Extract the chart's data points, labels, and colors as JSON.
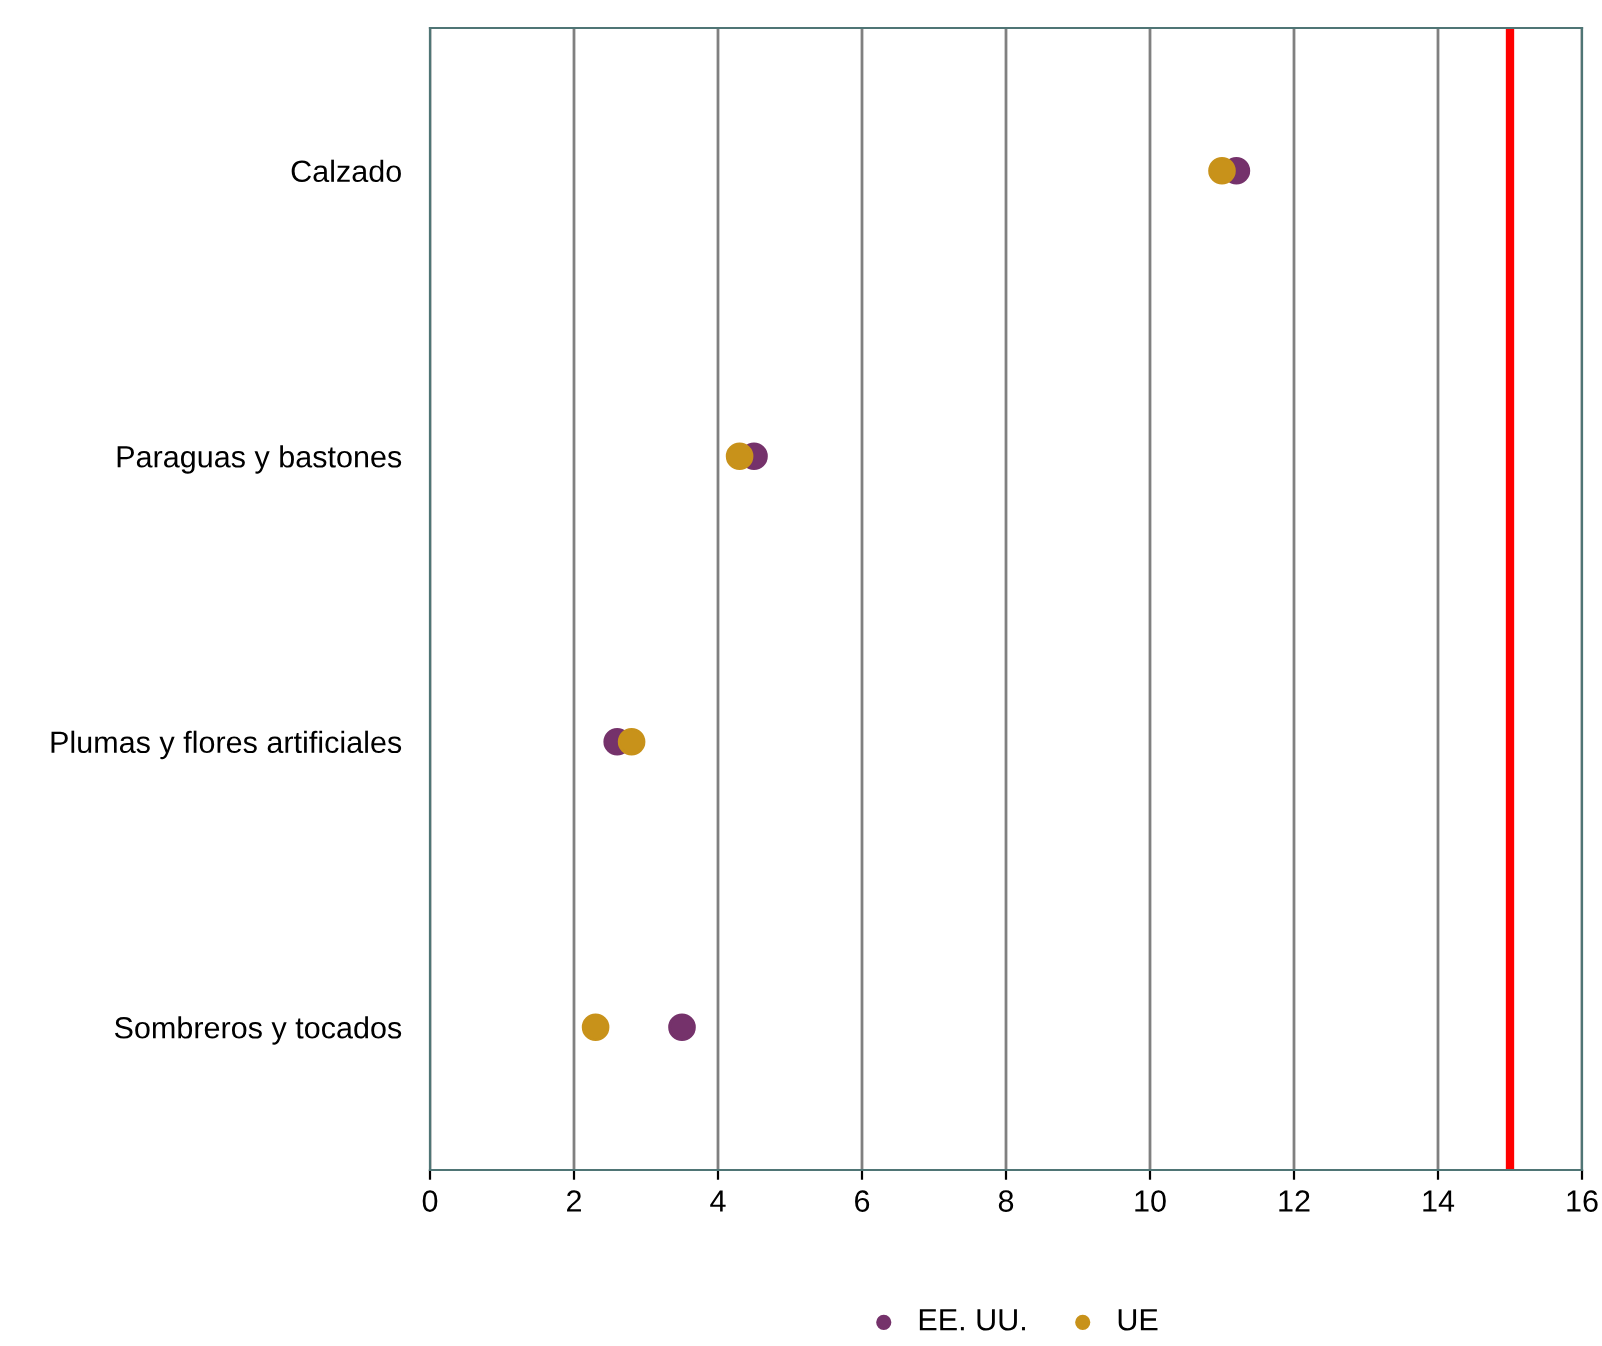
{
  "chart_data": {
    "type": "scatter",
    "orientation": "horizontal",
    "categories": [
      "Calzado",
      "Paraguas y bastones",
      "Plumas y flores artificiales",
      "Sombreros y tocados"
    ],
    "series": [
      {
        "name": "EE. UU.",
        "color": "#75326b",
        "values": [
          11.2,
          4.5,
          2.6,
          3.5
        ]
      },
      {
        "name": "UE",
        "color": "#c8921a",
        "values": [
          11.0,
          4.3,
          2.8,
          2.3
        ]
      }
    ],
    "xlim": [
      0,
      16
    ],
    "xticks": [
      0,
      2,
      4,
      6,
      8,
      10,
      12,
      14,
      16
    ],
    "grid": "x",
    "legend": "bottom",
    "marker": "circle",
    "ref_lines": [
      {
        "axis": "x",
        "value": 15,
        "color": "#ff0000"
      }
    ]
  }
}
